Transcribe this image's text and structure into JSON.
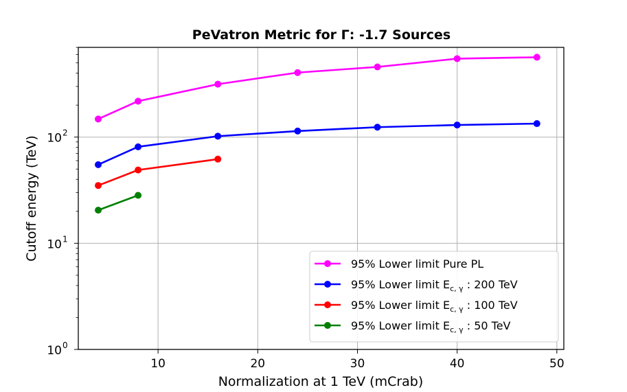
{
  "chart_data": {
    "type": "line",
    "title": "PeVatron Metric for Γ: -1.7 Sources",
    "xlabel": "Normalization at 1 TeV (mCrab)",
    "ylabel": "Cutoff energy (TeV)",
    "xlim": [
      2,
      50.7
    ],
    "ylim": [
      1,
      700
    ],
    "yscale": "log",
    "grid": true,
    "legend_position": "lower-right",
    "x_ticks": [
      {
        "value": 10,
        "label": "10"
      },
      {
        "value": 20,
        "label": "20"
      },
      {
        "value": 30,
        "label": "30"
      },
      {
        "value": 40,
        "label": "40"
      },
      {
        "value": 50,
        "label": "50"
      }
    ],
    "y_ticks": [
      {
        "value": 1,
        "base": "10",
        "exp": "0"
      },
      {
        "value": 10,
        "base": "10",
        "exp": "1"
      },
      {
        "value": 100,
        "base": "10",
        "exp": "2"
      }
    ],
    "series": [
      {
        "name": "95% Lower limit Pure PL",
        "legend_main": "95% Lower limit Pure PL",
        "legend_sub": "",
        "legend_tail": "",
        "color": "#ff00ff",
        "x": [
          4,
          8,
          16,
          24,
          32,
          40,
          48
        ],
        "y": [
          148,
          218,
          315,
          405,
          458,
          548,
          565
        ]
      },
      {
        "name": "95% Lower limit E_{c,γ} : 200 TeV",
        "legend_main": "95% Lower limit E",
        "legend_sub": "c, γ",
        "legend_tail": " : 200 TeV",
        "color": "#0000ff",
        "x": [
          4,
          8,
          16,
          24,
          32,
          40,
          48
        ],
        "y": [
          55,
          81,
          102,
          114,
          124,
          130,
          134
        ]
      },
      {
        "name": "95% Lower limit E_{c,γ} : 100 TeV",
        "legend_main": "95% Lower limit E",
        "legend_sub": "c, γ",
        "legend_tail": " : 100 TeV",
        "color": "#ff0000",
        "x": [
          4,
          8,
          16
        ],
        "y": [
          35,
          49,
          62
        ]
      },
      {
        "name": "95% Lower limit E_{c,γ} : 50 TeV",
        "legend_main": "95% Lower limit E",
        "legend_sub": "c, γ",
        "legend_tail": " : 50 TeV",
        "color": "#008000",
        "x": [
          4,
          8
        ],
        "y": [
          20.5,
          28.3
        ]
      }
    ]
  }
}
